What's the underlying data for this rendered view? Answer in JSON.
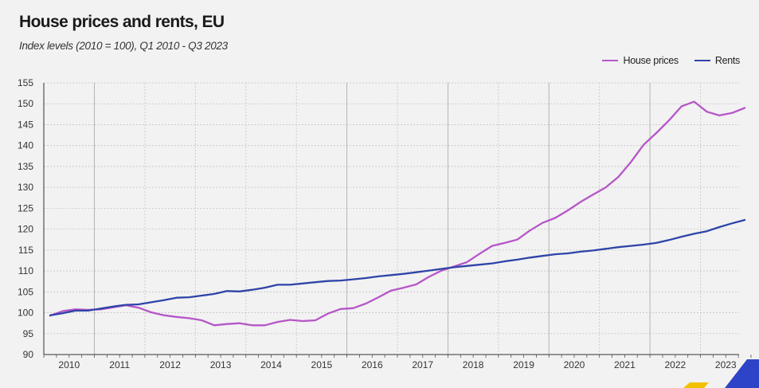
{
  "chart_data": {
    "type": "line",
    "title": "House prices and rents, EU",
    "subtitle": "Index levels (2010 = 100), Q1 2010 - Q3 2023",
    "xlabel": "",
    "ylabel": "",
    "ylim": [
      90,
      155
    ],
    "yticks": [
      90,
      95,
      100,
      105,
      110,
      115,
      120,
      125,
      130,
      135,
      140,
      145,
      150,
      155
    ],
    "year_labels": [
      "2010",
      "2011",
      "2012",
      "2013",
      "2014",
      "2015",
      "2016",
      "2017",
      "2018",
      "2019",
      "2020",
      "2021",
      "2022",
      "2023"
    ],
    "legend_position": "top-right",
    "series": [
      {
        "name": "House prices",
        "color": "#b656c8",
        "values": [
          99.3,
          100.4,
          100.8,
          100.7,
          100.8,
          101.3,
          101.8,
          101.2,
          100.1,
          99.4,
          99.0,
          98.7,
          98.2,
          97.0,
          97.3,
          97.5,
          97.0,
          97.0,
          97.8,
          98.3,
          98.0,
          98.2,
          99.8,
          100.9,
          101.1,
          102.2,
          103.7,
          105.3,
          106.0,
          106.8,
          108.6,
          110.1,
          111.1,
          112.1,
          114.1,
          116.0,
          116.7,
          117.5,
          119.7,
          121.5,
          122.7,
          124.5,
          126.5,
          128.3,
          130.0,
          132.5,
          136.1,
          140.2,
          143.0,
          146.0,
          149.4,
          150.5,
          148.1,
          147.2,
          147.8,
          149.0
        ]
      },
      {
        "name": "Rents",
        "color": "#2e44a8",
        "values": [
          99.4,
          99.9,
          100.5,
          100.5,
          101.0,
          101.5,
          101.9,
          102.0,
          102.5,
          103.0,
          103.6,
          103.7,
          104.1,
          104.5,
          105.2,
          105.1,
          105.5,
          106.0,
          106.7,
          106.7,
          107.0,
          107.3,
          107.6,
          107.7,
          108.0,
          108.3,
          108.7,
          109.0,
          109.3,
          109.7,
          110.1,
          110.5,
          110.9,
          111.2,
          111.5,
          111.8,
          112.3,
          112.7,
          113.2,
          113.6,
          114.0,
          114.2,
          114.6,
          114.9,
          115.3,
          115.7,
          116.0,
          116.3,
          116.7,
          117.4,
          118.2,
          118.9,
          119.5,
          120.5,
          121.4,
          122.2
        ]
      }
    ]
  }
}
